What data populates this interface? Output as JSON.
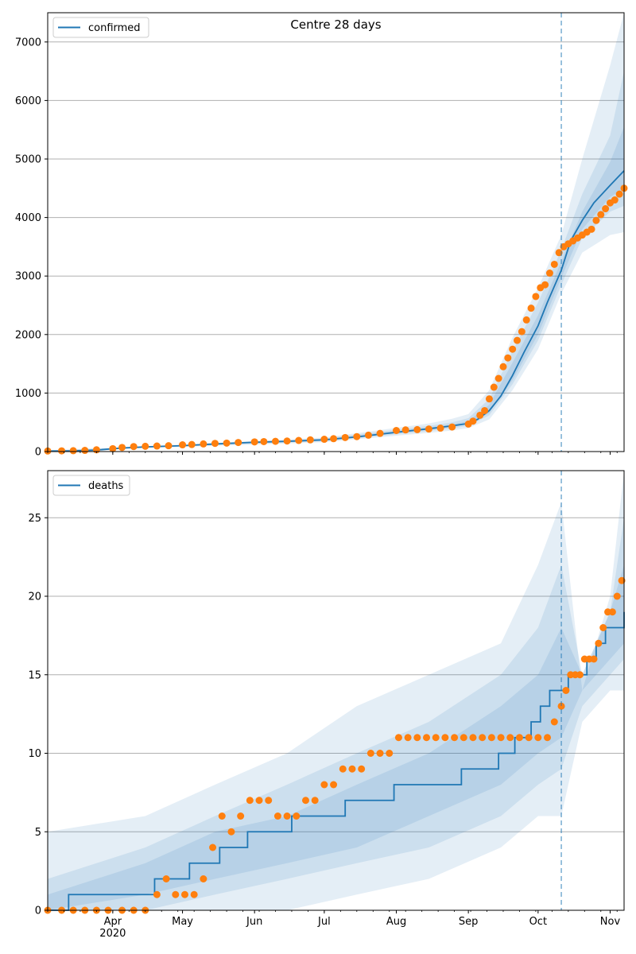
{
  "chart_data": [
    {
      "type": "line",
      "title": "Centre 28 days",
      "xlabel": "",
      "ylabel": "",
      "x_range": [
        "2020-03-04",
        "2020-11-07"
      ],
      "ylim": [
        0,
        7500
      ],
      "yticks": [
        0,
        1000,
        2000,
        3000,
        4000,
        5000,
        6000,
        7000
      ],
      "xticks": [
        {
          "date": "2020-04-01",
          "label": "Apr",
          "sublabel": "2020"
        },
        {
          "date": "2020-05-01",
          "label": "May"
        },
        {
          "date": "2020-06-01",
          "label": "Jun"
        },
        {
          "date": "2020-07-01",
          "label": "Jul"
        },
        {
          "date": "2020-08-01",
          "label": "Aug"
        },
        {
          "date": "2020-09-01",
          "label": "Sep"
        },
        {
          "date": "2020-10-01",
          "label": "Oct"
        },
        {
          "date": "2020-11-01",
          "label": "Nov"
        }
      ],
      "grid": "horizontal",
      "legend": {
        "position": "top-left",
        "entries": [
          "confirmed"
        ]
      },
      "forecast_start": "2020-10-11",
      "colors": {
        "line": "#1f77b4",
        "band": "#1f77b4",
        "points": "#ff7f0e",
        "vline": "#1f77b4"
      },
      "series": [
        {
          "name": "confirmed",
          "kind": "line",
          "x": [
            "2020-03-04",
            "2020-03-15",
            "2020-03-25",
            "2020-04-05",
            "2020-04-15",
            "2020-05-01",
            "2020-05-15",
            "2020-06-01",
            "2020-06-15",
            "2020-07-01",
            "2020-07-15",
            "2020-08-01",
            "2020-08-15",
            "2020-08-25",
            "2020-09-01",
            "2020-09-05",
            "2020-09-10",
            "2020-09-15",
            "2020-09-20",
            "2020-09-25",
            "2020-10-01",
            "2020-10-05",
            "2020-10-11",
            "2020-10-15",
            "2020-10-20",
            "2020-10-25",
            "2020-11-01",
            "2020-11-07"
          ],
          "y": [
            10,
            12,
            25,
            60,
            80,
            100,
            130,
            160,
            175,
            200,
            250,
            330,
            390,
            440,
            480,
            550,
            700,
            950,
            1300,
            1700,
            2150,
            2550,
            3100,
            3600,
            3950,
            4250,
            4550,
            4800
          ]
        },
        {
          "kind": "band",
          "x": [
            "2020-03-04",
            "2020-05-01",
            "2020-07-01",
            "2020-08-15",
            "2020-08-25",
            "2020-09-01",
            "2020-09-10",
            "2020-09-20",
            "2020-10-01",
            "2020-10-11",
            "2020-10-20",
            "2020-11-01",
            "2020-11-07"
          ],
          "lower": [
            0,
            80,
            160,
            320,
            360,
            400,
            550,
            1050,
            1750,
            2700,
            3400,
            3700,
            3750
          ],
          "upper": [
            20,
            120,
            240,
            480,
            560,
            640,
            1050,
            1950,
            2800,
            3700,
            5000,
            6600,
            7500
          ]
        },
        {
          "kind": "band",
          "x": [
            "2020-03-04",
            "2020-05-01",
            "2020-07-01",
            "2020-08-15",
            "2020-08-25",
            "2020-09-01",
            "2020-09-10",
            "2020-09-20",
            "2020-10-01",
            "2020-10-11",
            "2020-10-20",
            "2020-11-01",
            "2020-11-07"
          ],
          "lower": [
            5,
            90,
            175,
            350,
            395,
            440,
            620,
            1150,
            1900,
            2850,
            3650,
            4100,
            4200
          ],
          "upper": [
            16,
            110,
            225,
            440,
            500,
            570,
            900,
            1720,
            2550,
            3450,
            4400,
            5400,
            6500
          ]
        },
        {
          "kind": "band",
          "x": [
            "2020-03-04",
            "2020-05-01",
            "2020-07-01",
            "2020-08-15",
            "2020-08-25",
            "2020-09-01",
            "2020-09-10",
            "2020-09-20",
            "2020-10-01",
            "2020-10-11",
            "2020-10-20",
            "2020-11-01",
            "2020-11-07"
          ],
          "lower": [
            7,
            95,
            185,
            370,
            420,
            470,
            660,
            1220,
            2000,
            2970,
            3800,
            4350,
            4500
          ],
          "upper": [
            13,
            105,
            215,
            410,
            465,
            520,
            800,
            1520,
            2330,
            3250,
            4100,
            4950,
            5550
          ]
        },
        {
          "kind": "points",
          "x": [
            "2020-03-04",
            "2020-03-10",
            "2020-03-15",
            "2020-03-20",
            "2020-03-25",
            "2020-04-01",
            "2020-04-05",
            "2020-04-10",
            "2020-04-15",
            "2020-04-20",
            "2020-04-25",
            "2020-05-01",
            "2020-05-05",
            "2020-05-10",
            "2020-05-15",
            "2020-05-20",
            "2020-05-25",
            "2020-06-01",
            "2020-06-05",
            "2020-06-10",
            "2020-06-15",
            "2020-06-20",
            "2020-06-25",
            "2020-07-01",
            "2020-07-05",
            "2020-07-10",
            "2020-07-15",
            "2020-07-20",
            "2020-07-25",
            "2020-08-01",
            "2020-08-05",
            "2020-08-10",
            "2020-08-15",
            "2020-08-20",
            "2020-08-25",
            "2020-09-01",
            "2020-09-03",
            "2020-09-06",
            "2020-09-08",
            "2020-09-10",
            "2020-09-12",
            "2020-09-14",
            "2020-09-16",
            "2020-09-18",
            "2020-09-20",
            "2020-09-22",
            "2020-09-24",
            "2020-09-26",
            "2020-09-28",
            "2020-09-30",
            "2020-10-02",
            "2020-10-04",
            "2020-10-06",
            "2020-10-08",
            "2020-10-10",
            "2020-10-12",
            "2020-10-14",
            "2020-10-16",
            "2020-10-18",
            "2020-10-20",
            "2020-10-22",
            "2020-10-24",
            "2020-10-26",
            "2020-10-28",
            "2020-10-30",
            "2020-11-01",
            "2020-11-03",
            "2020-11-05",
            "2020-11-07"
          ],
          "y": [
            10,
            12,
            15,
            20,
            30,
            50,
            70,
            85,
            90,
            95,
            100,
            115,
            120,
            130,
            140,
            145,
            155,
            165,
            170,
            175,
            180,
            190,
            200,
            210,
            220,
            240,
            255,
            280,
            310,
            360,
            370,
            375,
            385,
            400,
            420,
            470,
            520,
            620,
            700,
            900,
            1100,
            1250,
            1450,
            1600,
            1750,
            1900,
            2050,
            2250,
            2450,
            2650,
            2800,
            2850,
            3050,
            3200,
            3400,
            3500,
            3550,
            3600,
            3650,
            3700,
            3750,
            3800,
            3950,
            4050,
            4150,
            4250,
            4300,
            4400,
            4500
          ]
        }
      ]
    },
    {
      "type": "line",
      "title": "",
      "xlabel": "",
      "ylabel": "",
      "x_range": [
        "2020-03-04",
        "2020-11-07"
      ],
      "ylim": [
        0,
        28
      ],
      "yticks": [
        0,
        5,
        10,
        15,
        20,
        25
      ],
      "xticks": [
        {
          "date": "2020-04-01",
          "label": "Apr",
          "sublabel": "2020"
        },
        {
          "date": "2020-05-01",
          "label": "May"
        },
        {
          "date": "2020-06-01",
          "label": "Jun"
        },
        {
          "date": "2020-07-01",
          "label": "Jul"
        },
        {
          "date": "2020-08-01",
          "label": "Aug"
        },
        {
          "date": "2020-09-01",
          "label": "Sep"
        },
        {
          "date": "2020-10-01",
          "label": "Oct"
        },
        {
          "date": "2020-11-01",
          "label": "Nov"
        }
      ],
      "grid": "horizontal",
      "legend": {
        "position": "top-left",
        "entries": [
          "deaths"
        ]
      },
      "forecast_start": "2020-10-11",
      "colors": {
        "line": "#1f77b4",
        "band": "#1f77b4",
        "points": "#ff7f0e",
        "vline": "#1f77b4"
      },
      "series": [
        {
          "name": "deaths",
          "kind": "step",
          "x": [
            "2020-03-04",
            "2020-03-13",
            "2020-04-19",
            "2020-05-04",
            "2020-05-17",
            "2020-05-29",
            "2020-06-17",
            "2020-07-10",
            "2020-07-31",
            "2020-08-29",
            "2020-09-14",
            "2020-09-21",
            "2020-09-28",
            "2020-10-02",
            "2020-10-06",
            "2020-10-10",
            "2020-10-14",
            "2020-10-18",
            "2020-10-22",
            "2020-10-26",
            "2020-10-30",
            "2020-11-01",
            "2020-11-07"
          ],
          "y": [
            0,
            1,
            2,
            3,
            4,
            5,
            6,
            7,
            8,
            9,
            10,
            11,
            12,
            13,
            14,
            14,
            15,
            15,
            16,
            17,
            18,
            18,
            19
          ]
        },
        {
          "kind": "band",
          "x": [
            "2020-03-04",
            "2020-04-15",
            "2020-05-15",
            "2020-06-15",
            "2020-07-15",
            "2020-08-15",
            "2020-09-15",
            "2020-10-01",
            "2020-10-11",
            "2020-10-20",
            "2020-11-01",
            "2020-11-07"
          ],
          "lower": [
            0,
            0,
            0,
            0,
            1,
            2,
            4,
            6,
            6,
            12,
            14,
            14
          ],
          "upper": [
            5,
            6,
            8,
            10,
            13,
            15,
            17,
            22,
            26,
            14,
            20,
            28
          ]
        },
        {
          "kind": "band",
          "x": [
            "2020-03-04",
            "2020-04-15",
            "2020-05-15",
            "2020-06-15",
            "2020-07-15",
            "2020-08-15",
            "2020-09-15",
            "2020-10-01",
            "2020-10-11",
            "2020-10-20",
            "2020-11-01",
            "2020-11-07"
          ],
          "lower": [
            0,
            0,
            1,
            2,
            3,
            4,
            6,
            8,
            9,
            13,
            15,
            16
          ],
          "upper": [
            2,
            4,
            6,
            8,
            10,
            12,
            15,
            18,
            22,
            15,
            19,
            25
          ]
        },
        {
          "kind": "band",
          "x": [
            "2020-03-04",
            "2020-04-15",
            "2020-05-15",
            "2020-06-15",
            "2020-07-15",
            "2020-08-15",
            "2020-09-15",
            "2020-10-01",
            "2020-10-11",
            "2020-10-20",
            "2020-11-01",
            "2020-11-07"
          ],
          "lower": [
            0,
            1,
            2,
            3,
            4,
            6,
            8,
            10,
            11,
            14,
            16,
            17
          ],
          "upper": [
            1,
            3,
            5,
            6,
            8,
            10,
            13,
            15,
            18,
            15,
            19,
            22
          ]
        },
        {
          "kind": "points",
          "x": [
            "2020-03-04",
            "2020-03-10",
            "2020-03-15",
            "2020-03-20",
            "2020-03-25",
            "2020-03-30",
            "2020-04-05",
            "2020-04-10",
            "2020-04-15",
            "2020-04-20",
            "2020-04-24",
            "2020-04-28",
            "2020-05-02",
            "2020-05-06",
            "2020-05-10",
            "2020-05-14",
            "2020-05-18",
            "2020-05-22",
            "2020-05-26",
            "2020-05-30",
            "2020-06-03",
            "2020-06-07",
            "2020-06-11",
            "2020-06-15",
            "2020-06-19",
            "2020-06-23",
            "2020-06-27",
            "2020-07-01",
            "2020-07-05",
            "2020-07-09",
            "2020-07-13",
            "2020-07-17",
            "2020-07-21",
            "2020-07-25",
            "2020-07-29",
            "2020-08-02",
            "2020-08-06",
            "2020-08-10",
            "2020-08-14",
            "2020-08-18",
            "2020-08-22",
            "2020-08-26",
            "2020-08-30",
            "2020-09-03",
            "2020-09-07",
            "2020-09-11",
            "2020-09-15",
            "2020-09-19",
            "2020-09-23",
            "2020-09-27",
            "2020-10-01",
            "2020-10-05",
            "2020-10-08",
            "2020-10-11",
            "2020-10-13",
            "2020-10-15",
            "2020-10-17",
            "2020-10-19",
            "2020-10-21",
            "2020-10-23",
            "2020-10-25",
            "2020-10-27",
            "2020-10-29",
            "2020-10-31",
            "2020-11-02",
            "2020-11-04",
            "2020-11-06"
          ],
          "y": [
            0,
            0,
            0,
            0,
            0,
            0,
            0,
            0,
            0,
            1,
            2,
            1,
            1,
            1,
            2,
            4,
            6,
            5,
            6,
            7,
            7,
            7,
            6,
            6,
            6,
            7,
            7,
            8,
            8,
            9,
            9,
            9,
            10,
            10,
            10,
            11,
            11,
            11,
            11,
            11,
            11,
            11,
            11,
            11,
            11,
            11,
            11,
            11,
            11,
            11,
            11,
            11,
            12,
            13,
            14,
            15,
            15,
            15,
            16,
            16,
            16,
            17,
            18,
            19,
            19,
            20,
            21
          ]
        }
      ]
    }
  ]
}
